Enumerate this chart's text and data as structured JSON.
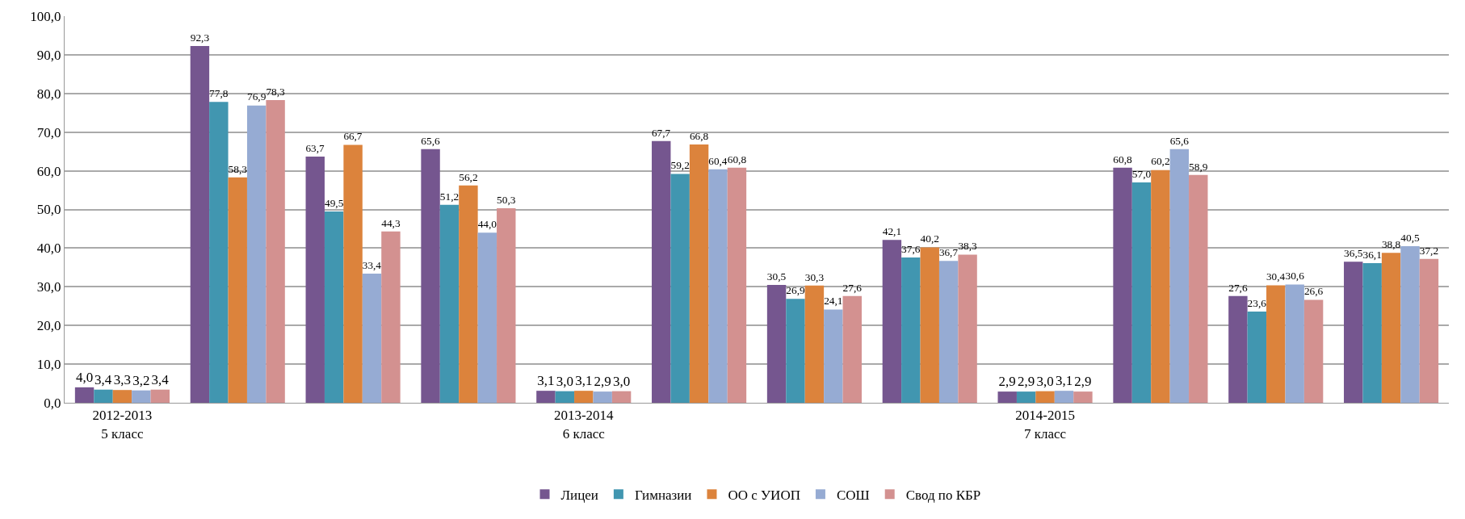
{
  "chart_data": {
    "type": "bar",
    "categories": [
      "2012-2013\n5 класс",
      null,
      null,
      null,
      "2013-2014\n6 класс",
      null,
      null,
      null,
      "2014-2015\n7 класс",
      null,
      null,
      null
    ],
    "series": [
      {
        "name": "Лицеи",
        "color": "#75568f",
        "values": [
          4.0,
          92.3,
          63.7,
          65.6,
          3.1,
          67.7,
          30.5,
          42.1,
          2.9,
          60.8,
          27.6,
          36.5
        ],
        "value_labels": [
          "4,0",
          "92,3",
          "63,7",
          "65,6",
          "3,1",
          "67,7",
          "30,5",
          "42,1",
          "2,9",
          "60,8",
          "27,6",
          "36,5"
        ]
      },
      {
        "name": "Гимназии",
        "color": "#4196b0",
        "values": [
          3.4,
          77.8,
          49.5,
          51.2,
          3.0,
          59.2,
          26.9,
          37.6,
          2.9,
          57.0,
          23.6,
          36.1
        ],
        "value_labels": [
          "3,4",
          "77,8",
          "49,5",
          "51,2",
          "3,0",
          "59,2",
          "26,9",
          "37,6",
          "2,9",
          "57,0",
          "23,6",
          "36,1"
        ]
      },
      {
        "name": "ОО с УИОП",
        "color": "#dc833c",
        "values": [
          3.3,
          58.3,
          66.7,
          56.2,
          3.1,
          66.8,
          30.3,
          40.2,
          3.0,
          60.2,
          30.4,
          38.8
        ],
        "value_labels": [
          "3,3",
          "58,3",
          "66,7",
          "56,2",
          "3,1",
          "66,8",
          "30,3",
          "40,2",
          "3,0",
          "60,2",
          "30,4",
          "38,8"
        ]
      },
      {
        "name": "СОШ",
        "color": "#96abd3",
        "values": [
          3.2,
          76.9,
          33.4,
          44.0,
          2.9,
          60.4,
          24.1,
          36.7,
          3.1,
          65.6,
          30.6,
          40.5
        ],
        "value_labels": [
          "3,2",
          "76,9",
          "33,4",
          "44,0",
          "2,9",
          "60,4",
          "24,1",
          "36,7",
          "3,1",
          "65,6",
          "30,6",
          "40,5"
        ]
      },
      {
        "name": "Свод по КБР",
        "color": "#d39190",
        "values": [
          3.4,
          78.3,
          44.3,
          50.3,
          3.0,
          60.8,
          27.6,
          38.3,
          2.9,
          58.9,
          26.6,
          37.2
        ],
        "value_labels": [
          "3,4",
          "78,3",
          "44,3",
          "50,3",
          "3,0",
          "60,8",
          "27,6",
          "38,3",
          "2,9",
          "58,9",
          "26,6",
          "37,2"
        ]
      }
    ],
    "ylim": [
      0,
      100
    ],
    "yticks": [
      {
        "value": 0,
        "label": "0,0"
      },
      {
        "value": 10,
        "label": "10,0"
      },
      {
        "value": 20,
        "label": "20,0"
      },
      {
        "value": 30,
        "label": "30,0"
      },
      {
        "value": 40,
        "label": "40,0"
      },
      {
        "value": 50,
        "label": "50,0"
      },
      {
        "value": 60,
        "label": "60,0"
      },
      {
        "value": 70,
        "label": "70,0"
      },
      {
        "value": 80,
        "label": "80,0"
      },
      {
        "value": 90,
        "label": "90,0"
      },
      {
        "value": 100,
        "label": "100,0"
      }
    ],
    "grid": "y",
    "legend": "bottom"
  }
}
